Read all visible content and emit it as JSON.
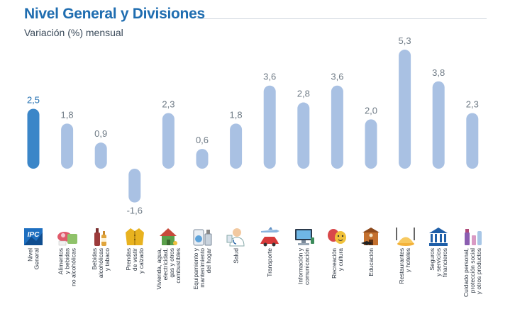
{
  "header": {
    "title": "Nivel General y Divisiones",
    "subtitle": "Variación (%) mensual"
  },
  "colors": {
    "highlight_bar": "#3b86c8",
    "bar": "#a9c1e3",
    "highlight_label": "#1f6db0",
    "label": "#6f7b86"
  },
  "chart_data": {
    "type": "bar",
    "title": "Nivel General y Divisiones",
    "subtitle": "Variación (%) mensual",
    "xlabel": "",
    "ylabel": "",
    "grid": false,
    "legend": "none",
    "categories": [
      [
        "Nivel",
        "General"
      ],
      [
        "Alimentos",
        "y bebidas",
        "no alcohólicas"
      ],
      [
        "Bebidas",
        "alcohólicas",
        "y tabaco"
      ],
      [
        "Prendas",
        "de vestir",
        "y calzado"
      ],
      [
        "Vivienda, agua,",
        "electricidad,",
        "gas y otros",
        "combustibles"
      ],
      [
        "Equipamiento y",
        "mantenimiento",
        "del hogar"
      ],
      [
        "Salud"
      ],
      [
        "Transporte"
      ],
      [
        "Información y",
        "comunicación"
      ],
      [
        "Recreación",
        "y cultura"
      ],
      [
        "Educación"
      ],
      [
        "Restaurantes",
        "y hoteles"
      ],
      [
        "Seguros",
        "y servicios",
        "financieros"
      ],
      [
        "Cuidado personal,",
        "protección social",
        "y otros productos"
      ]
    ],
    "values": [
      2.5,
      1.8,
      0.9,
      -1.6,
      2.3,
      0.6,
      1.8,
      3.6,
      2.8,
      3.6,
      2.0,
      5.3,
      3.8,
      2.3
    ],
    "value_labels": [
      "2,5",
      "1,8",
      "0,9",
      "-1,6",
      "2,3",
      "0,6",
      "1,8",
      "3,6",
      "2,8",
      "3,6",
      "2,0",
      "5,3",
      "3,8",
      "2,3"
    ],
    "highlight_index": 0
  },
  "icons": [
    {
      "name": "ipc-logo-icon",
      "text": "IPC"
    },
    {
      "name": "food-icon"
    },
    {
      "name": "bottles-icon"
    },
    {
      "name": "jacket-icon"
    },
    {
      "name": "house-icon"
    },
    {
      "name": "appliances-icon"
    },
    {
      "name": "doctor-icon"
    },
    {
      "name": "car-plane-icon"
    },
    {
      "name": "computer-icon"
    },
    {
      "name": "theater-masks-icon"
    },
    {
      "name": "school-icon"
    },
    {
      "name": "cutlery-icon"
    },
    {
      "name": "bank-icon"
    },
    {
      "name": "cosmetics-icon"
    }
  ]
}
